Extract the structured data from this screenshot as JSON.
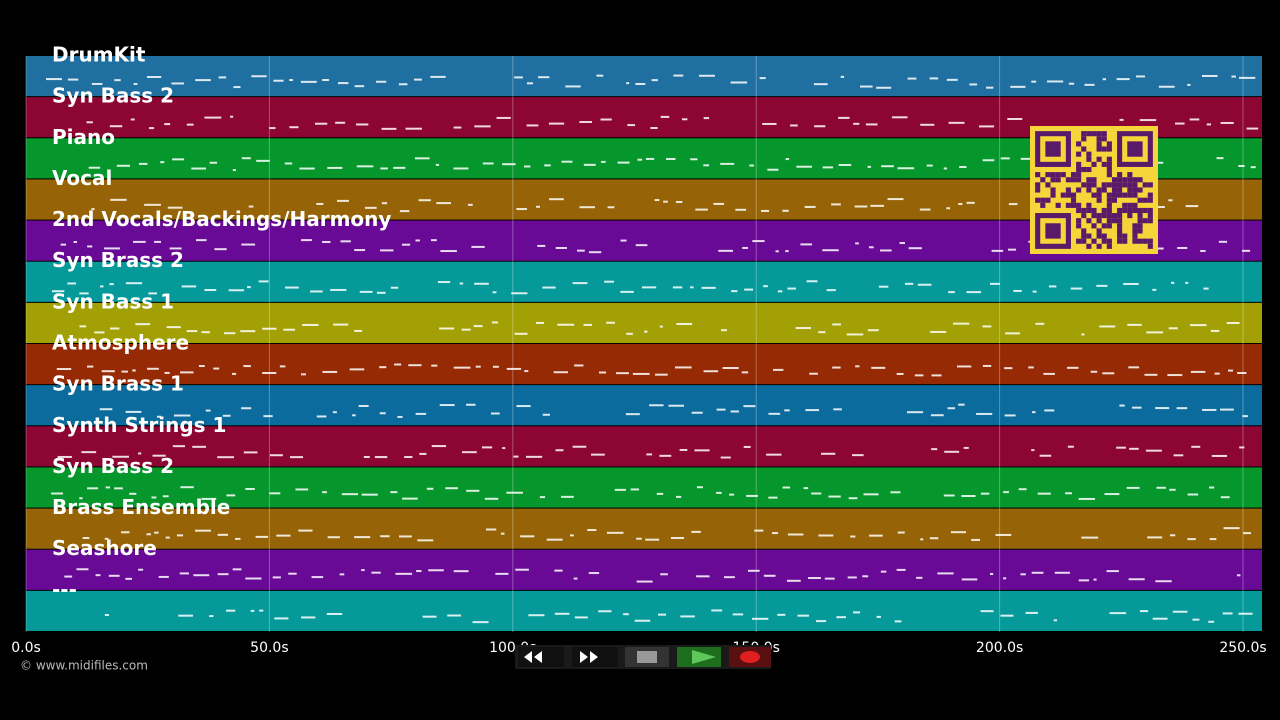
{
  "tracks": [
    {
      "name": "DrumKit",
      "color": "#1f6fa0"
    },
    {
      "name": "Syn Bass 2",
      "color": "#8c0533"
    },
    {
      "name": "Piano",
      "color": "#05962c"
    },
    {
      "name": "Vocal",
      "color": "#966406"
    },
    {
      "name": "2nd Vocals/Backings/Harmony",
      "color": "#680a96"
    },
    {
      "name": "Syn Brass 2",
      "color": "#05999a"
    },
    {
      "name": "Syn Bass 1",
      "color": "#a2a005"
    },
    {
      "name": "Atmosphere",
      "color": "#962a05"
    },
    {
      "name": "Syn Brass 1",
      "color": "#0a6b9c"
    },
    {
      "name": "Synth Strings 1",
      "color": "#8c0533"
    },
    {
      "name": "Syn Bass 2",
      "color": "#05962c"
    },
    {
      "name": "Brass Ensemble",
      "color": "#966406"
    },
    {
      "name": "Seashore",
      "color": "#680a96"
    },
    {
      "name": "---",
      "color": "#05999a"
    }
  ],
  "timeline": {
    "ticks": [
      "0.0s",
      "50.0s",
      "100.0s",
      "150.0s",
      "200.0s",
      "250.0s"
    ]
  },
  "footer": {
    "copyright": "© www.midifiles.com"
  }
}
